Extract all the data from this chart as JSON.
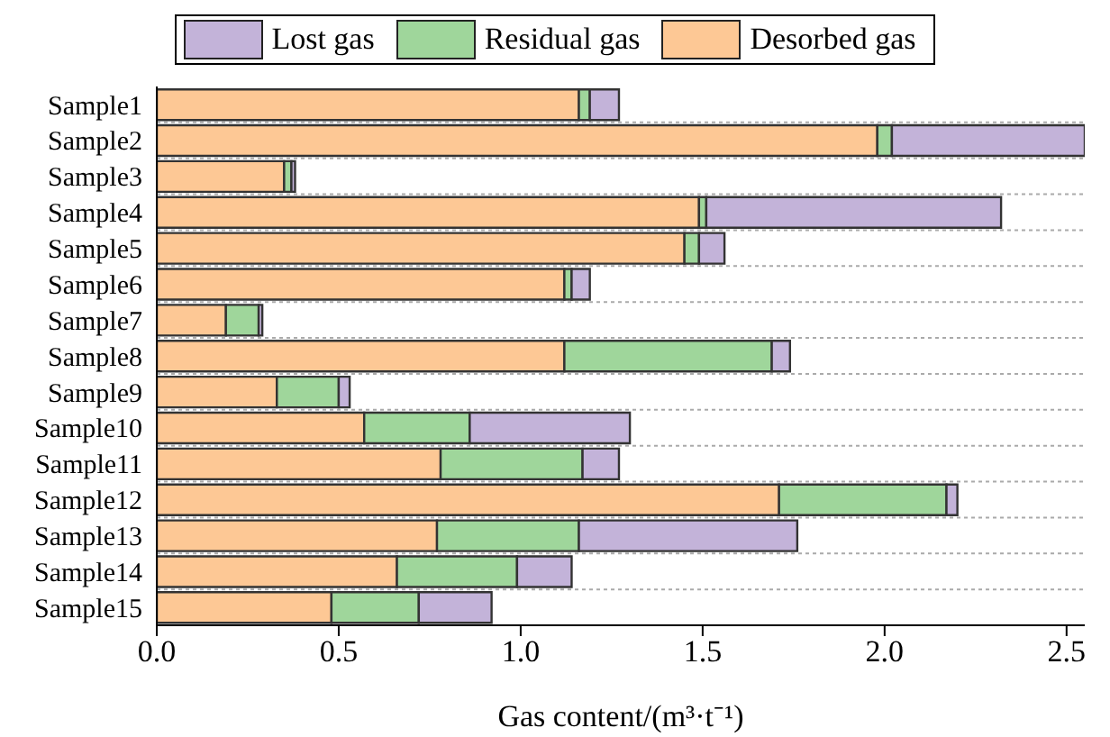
{
  "chart_data": {
    "type": "bar",
    "orientation": "horizontal",
    "stacked": true,
    "xlabel": "Gas content/(m³·t⁻¹)",
    "categories": [
      "Sample1",
      "Sample2",
      "Sample3",
      "Sample4",
      "Sample5",
      "Sample6",
      "Sample7",
      "Sample8",
      "Sample9",
      "Sample10",
      "Sample11",
      "Sample12",
      "Sample13",
      "Sample14",
      "Sample15"
    ],
    "series": [
      {
        "name": "Desorbed gas",
        "color": "#fdc895",
        "values": [
          1.16,
          1.98,
          0.35,
          1.49,
          1.45,
          1.12,
          0.19,
          1.12,
          0.33,
          0.57,
          0.78,
          1.71,
          0.77,
          0.66,
          0.48
        ]
      },
      {
        "name": "Residual gas",
        "color": "#9fd69b",
        "values": [
          0.03,
          0.04,
          0.02,
          0.02,
          0.04,
          0.02,
          0.09,
          0.57,
          0.17,
          0.29,
          0.39,
          0.46,
          0.39,
          0.33,
          0.24
        ]
      },
      {
        "name": "Lost gas",
        "color": "#c3b3d9",
        "values": [
          0.08,
          0.53,
          0.01,
          0.81,
          0.07,
          0.05,
          0.01,
          0.05,
          0.03,
          0.44,
          0.1,
          0.03,
          0.6,
          0.15,
          0.2
        ]
      }
    ],
    "xlim": [
      0,
      2.55
    ],
    "xticks": [
      {
        "value": 0,
        "label": "0.0"
      },
      {
        "value": 0.5,
        "label": "0.5"
      },
      {
        "value": 1,
        "label": "1.0"
      },
      {
        "value": 1.5,
        "label": "1.5"
      },
      {
        "value": 2,
        "label": "2.0"
      },
      {
        "value": 2.5,
        "label": "2.5"
      }
    ],
    "grid": "y",
    "legend": "top"
  }
}
